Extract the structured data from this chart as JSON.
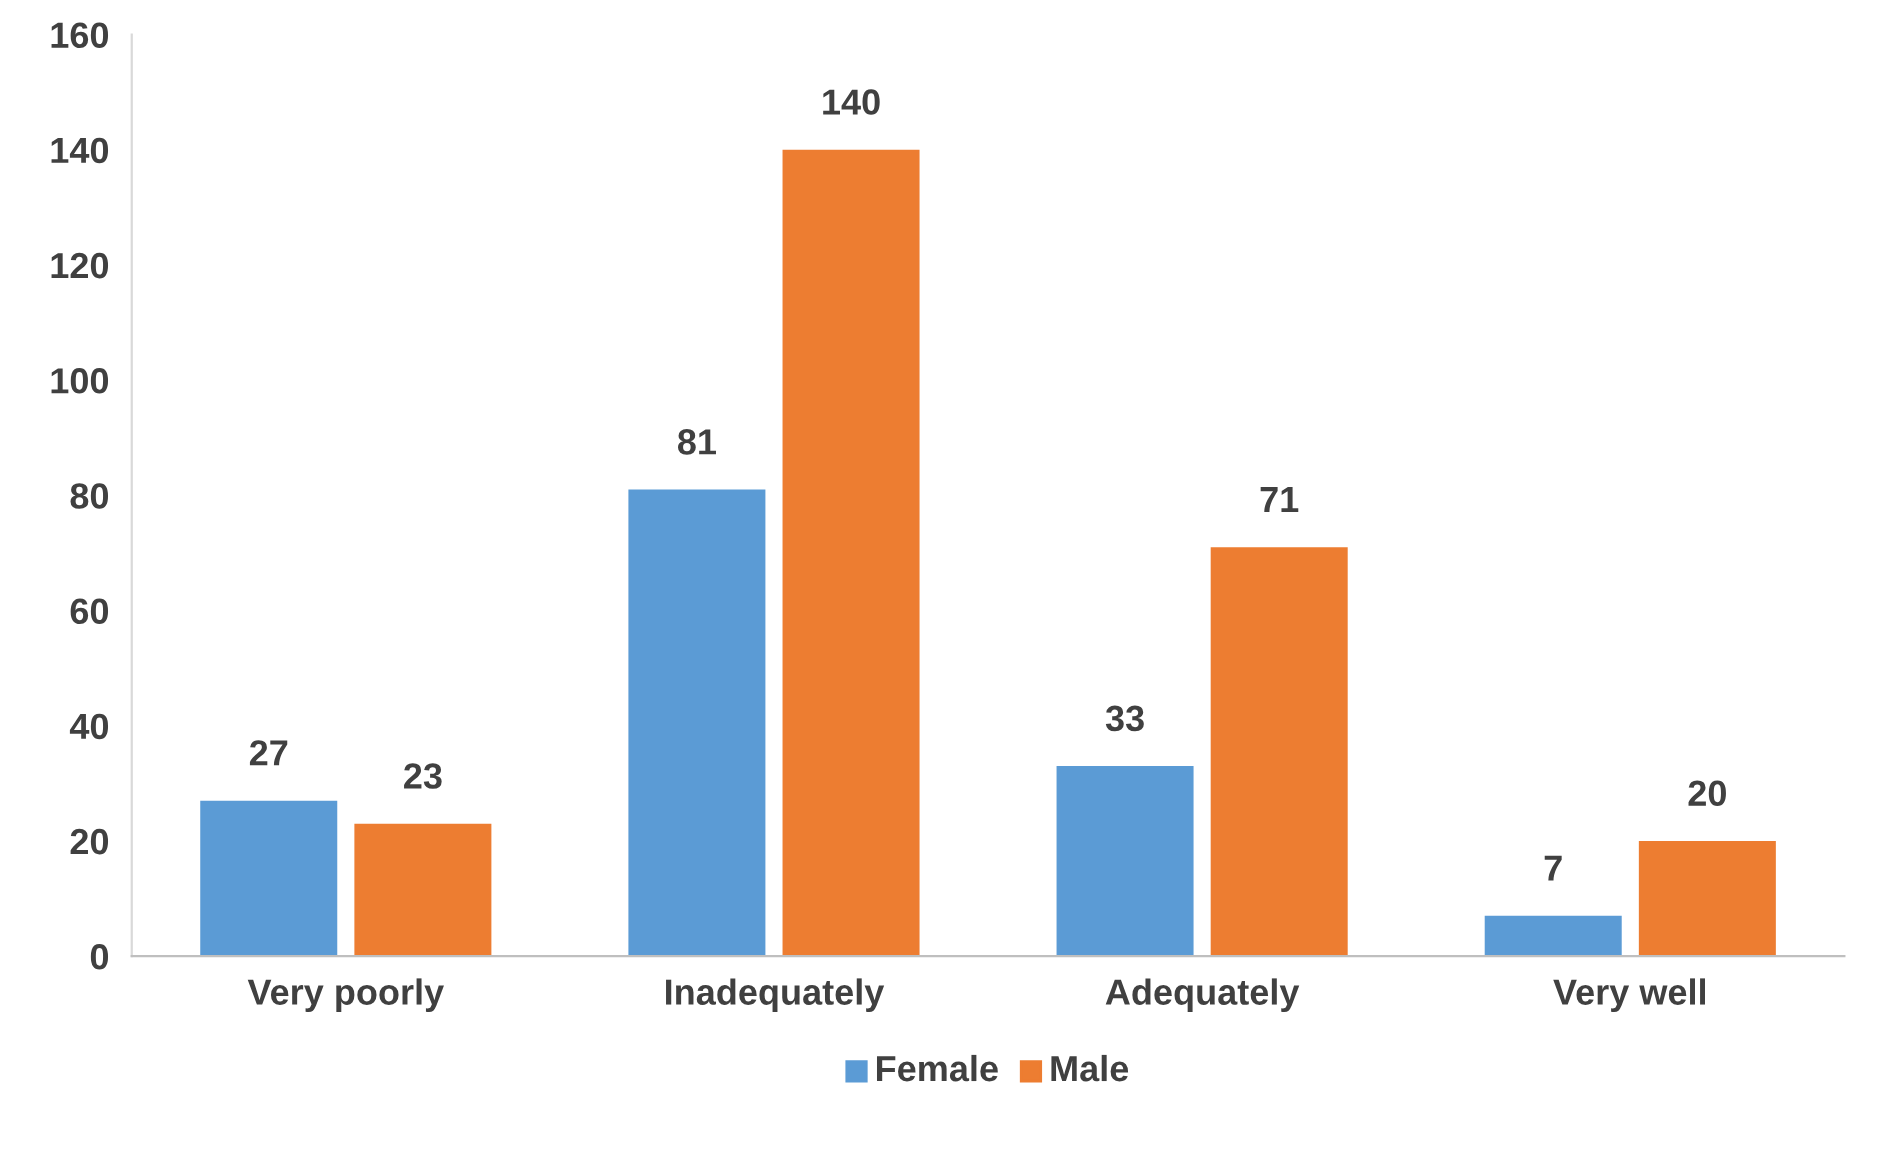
{
  "chart_data": {
    "type": "bar",
    "categories": [
      "Very poorly",
      "Inadequately",
      "Adequately",
      "Very well"
    ],
    "series": [
      {
        "name": "Female",
        "color": "#5b9bd5",
        "values": [
          27,
          81,
          33,
          7
        ]
      },
      {
        "name": "Male",
        "color": "#ed7d31",
        "values": [
          23,
          140,
          71,
          20
        ]
      }
    ],
    "ylim": [
      0,
      160
    ],
    "yticks": [
      0,
      20,
      40,
      60,
      80,
      100,
      120,
      140,
      160
    ],
    "data_labels": true,
    "legend": "bottom",
    "grid": false
  }
}
